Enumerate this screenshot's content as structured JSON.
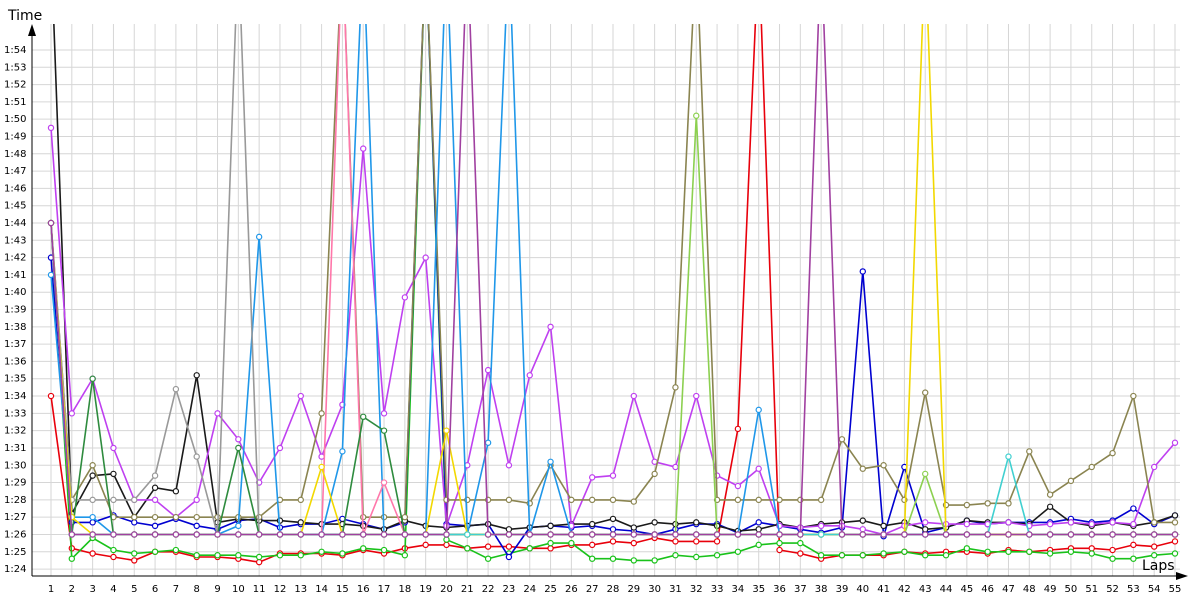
{
  "chart_data": {
    "type": "line",
    "xlabel": "Laps",
    "ylabel": "Time",
    "x_ticks": [
      "1",
      "2",
      "3",
      "4",
      "5",
      "6",
      "7",
      "8",
      "9",
      "10",
      "11",
      "12",
      "13",
      "14",
      "15",
      "16",
      "17",
      "18",
      "19",
      "20",
      "21",
      "22",
      "23",
      "24",
      "25",
      "26",
      "27",
      "28",
      "29",
      "30",
      "31",
      "32",
      "33",
      "34",
      "35",
      "36",
      "37",
      "38",
      "39",
      "40",
      "41",
      "42",
      "43",
      "44",
      "45",
      "46",
      "47",
      "48",
      "49",
      "50",
      "51",
      "52",
      "53",
      "54",
      "55"
    ],
    "y_ticks": [
      "1:24",
      "1:25",
      "1:26",
      "1:27",
      "1:28",
      "1:29",
      "1:30",
      "1:31",
      "1:32",
      "1:33",
      "1:34",
      "1:35",
      "1:36",
      "1:37",
      "1:38",
      "1:39",
      "1:40",
      "1:41",
      "1:42",
      "1:43",
      "1:44",
      "1:45",
      "1:46",
      "1:47",
      "1:48",
      "1:49",
      "1:50",
      "1:51",
      "1:52",
      "1:53",
      "1:54"
    ],
    "y_unit_seconds": {
      "min": 83.6,
      "max": 115.5
    },
    "grid": true,
    "legend": "none",
    "note_values_in_seconds": true,
    "series": [
      {
        "color": "#e8000b",
        "values": [
          94,
          85.2,
          84.9,
          84.7,
          84.5,
          85.0,
          85.0,
          84.7,
          84.7,
          84.6,
          84.4,
          84.9,
          84.9,
          84.9,
          84.8,
          85.1,
          84.9,
          85.2,
          85.4,
          85.4,
          85.2,
          85.3,
          85.3,
          85.2,
          85.2,
          85.4,
          85.4,
          85.6,
          85.5,
          85.8,
          85.6,
          85.6,
          85.6,
          92.1,
          120,
          85.1,
          84.9,
          84.6,
          84.8,
          84.8,
          84.8,
          85.0,
          84.9,
          85.0,
          85.0,
          84.9,
          85.1,
          85.0,
          85.1,
          85.2,
          85.2,
          85.1,
          85.4,
          85.3,
          85.6
        ]
      },
      {
        "color": "#19c21a",
        "values": [
          104,
          84.6,
          85.8,
          85.1,
          84.9,
          85.0,
          85.1,
          84.8,
          84.8,
          84.8,
          84.7,
          84.8,
          84.8,
          85.0,
          84.9,
          85.2,
          85.1,
          84.8,
          120,
          85.7,
          85.2,
          84.6,
          84.9,
          85.2,
          85.5,
          85.5,
          84.6,
          84.6,
          84.5,
          84.5,
          84.8,
          84.7,
          84.8,
          85.0,
          85.4,
          85.5,
          85.5,
          84.8,
          84.8,
          84.8,
          84.9,
          85.0,
          84.8,
          84.8,
          85.2,
          85.0,
          85.0,
          85.0,
          84.9,
          85.0,
          84.9,
          84.6,
          84.6,
          84.8,
          84.9
        ]
      },
      {
        "color": "#0000d0",
        "values": [
          102,
          86.7,
          86.7,
          87.1,
          86.7,
          86.5,
          86.9,
          86.5,
          86.3,
          86.8,
          86.9,
          86.4,
          86.6,
          86.6,
          86.9,
          86.6,
          86.3,
          86.7,
          120,
          86.6,
          86.5,
          86.6,
          84.7,
          86.4,
          86.5,
          86.4,
          86.5,
          86.3,
          86.2,
          86.0,
          86.3,
          86.6,
          86.6,
          86.1,
          86.7,
          86.5,
          86.3,
          86.1,
          86.4,
          101.2,
          85.9,
          89.9,
          86.1,
          86.4,
          86.8,
          86.6,
          86.7,
          86.7,
          86.7,
          86.9,
          86.7,
          86.8,
          87.5,
          86.6,
          87.1
        ]
      },
      {
        "color": "#1a1a1a",
        "values": [
          120,
          87.2,
          89.4,
          89.5,
          87.0,
          88.7,
          88.5,
          95.2,
          86.7,
          86.9,
          86.8,
          86.8,
          86.7,
          86.6,
          86.6,
          86.5,
          86.3,
          86.8,
          86.5,
          86.4,
          86.5,
          86.6,
          86.3,
          86.4,
          86.5,
          86.6,
          86.6,
          86.9,
          86.4,
          86.7,
          86.6,
          86.7,
          86.5,
          86.2,
          86.3,
          86.6,
          86.4,
          86.6,
          86.7,
          86.8,
          86.5,
          86.7,
          86.3,
          86.4,
          86.8,
          86.7,
          86.7,
          86.6,
          87.6,
          86.7,
          86.5,
          86.7,
          86.5,
          86.7,
          87.1
        ]
      },
      {
        "color": "#bf40f0",
        "values": [
          109.5,
          93,
          95,
          91,
          88,
          88,
          87,
          88,
          93,
          91.5,
          89,
          91,
          94,
          90.5,
          93.5,
          108.3,
          93,
          99.7,
          102,
          86.5,
          90,
          95.5,
          90,
          95.2,
          98,
          86.5,
          89.3,
          89.4,
          94,
          90.2,
          89.9,
          94,
          89.4,
          88.8,
          89.8,
          86.5,
          86.4,
          86.5,
          86.5,
          86.3,
          86.0,
          86.5,
          86.7,
          86.6,
          86.6,
          86.6,
          86.7,
          86.5,
          86.6,
          86.7,
          86.6,
          86.7,
          86.6,
          89.9,
          91.3
        ]
      },
      {
        "color": "#8a8450",
        "values": [
          104,
          88,
          90,
          87,
          87,
          87,
          87,
          87,
          87,
          87,
          87,
          88,
          88,
          93,
          120,
          87,
          87,
          87,
          120,
          88,
          88,
          88,
          88,
          87.8,
          90,
          88,
          88,
          88,
          87.9,
          89.5,
          94.5,
          120,
          88,
          88,
          88,
          88,
          88,
          88,
          91.5,
          89.8,
          90,
          88,
          94.2,
          87.7,
          87.7,
          87.8,
          87.8,
          90.8,
          88.3,
          89.1,
          89.9,
          90.7,
          94,
          86.7,
          86.7
        ]
      },
      {
        "color": "#1f97e9",
        "values": [
          101,
          87,
          87,
          86,
          86,
          86,
          86,
          86,
          86,
          86.5,
          103.2,
          86,
          86,
          86,
          90.8,
          120,
          86,
          86,
          86,
          120,
          86,
          91.3,
          120,
          86,
          90.2,
          86,
          86,
          86,
          86,
          86,
          86,
          86,
          86,
          86,
          93.2,
          86,
          86,
          86,
          86,
          86,
          86,
          86,
          86,
          86,
          86,
          86,
          86,
          86,
          86,
          86,
          86,
          86,
          86,
          86,
          86
        ]
      },
      {
        "color": "#999999",
        "values": [
          104,
          88,
          88,
          88,
          88,
          89.4,
          94.4,
          90.5,
          86,
          120,
          86,
          86,
          86,
          86,
          86,
          86,
          86,
          86,
          86,
          86,
          86,
          86,
          86,
          86,
          86,
          86,
          86,
          86,
          86,
          86,
          86,
          86,
          86,
          86,
          86,
          86,
          86,
          86,
          86,
          86,
          86,
          86,
          86,
          86,
          86,
          86,
          86,
          86,
          86,
          86,
          86,
          86,
          86,
          86,
          86
        ]
      },
      {
        "color": "#8cd050",
        "values": [
          104,
          86,
          86,
          86,
          86,
          86,
          86,
          86,
          86,
          86,
          86,
          86,
          86,
          86,
          86,
          86,
          86,
          86,
          86,
          86,
          86,
          86,
          86,
          86,
          86,
          86,
          86,
          86,
          86,
          86,
          86,
          110.2,
          86,
          86,
          86,
          86,
          86,
          86,
          86,
          86,
          86,
          86,
          89.5,
          86,
          86,
          86,
          86,
          86,
          86,
          86,
          86,
          86,
          86,
          86,
          86
        ]
      },
      {
        "color": "#ff77aa",
        "values": [
          104,
          86,
          86,
          86,
          86,
          86,
          86,
          86,
          86,
          86,
          86,
          86,
          86,
          86,
          120,
          86,
          89,
          86,
          86,
          86,
          86,
          86,
          86,
          86,
          86,
          86,
          86,
          86,
          86,
          86,
          86,
          86,
          86,
          86,
          86,
          86,
          86,
          86,
          86,
          86,
          86,
          86,
          86,
          86,
          86,
          86,
          86,
          86,
          86,
          86,
          86,
          86,
          86,
          86,
          86
        ]
      },
      {
        "color": "#2e8b3e",
        "values": [
          104,
          86,
          95,
          86,
          86,
          86,
          86,
          86,
          86,
          91,
          86,
          86,
          86,
          86,
          86,
          92.8,
          92,
          86,
          86,
          86,
          86,
          86,
          86,
          86,
          86,
          86,
          86,
          86,
          86,
          86,
          86,
          86,
          86,
          86,
          86,
          86,
          86,
          86,
          86,
          86,
          86,
          86,
          86,
          86,
          86,
          86,
          86,
          86,
          86,
          86,
          86,
          86,
          86,
          86,
          86
        ]
      },
      {
        "color": "#f2d800",
        "values": [
          104,
          87,
          86,
          86,
          86,
          86,
          86,
          86,
          86,
          86,
          86,
          86,
          86,
          89.9,
          86,
          86,
          86,
          86,
          86,
          92,
          86,
          86,
          86,
          86,
          86,
          86,
          86,
          86,
          86,
          86,
          86,
          86,
          86,
          86,
          86,
          86,
          86,
          86,
          86,
          86,
          86,
          86,
          120,
          86,
          86,
          86,
          86,
          86,
          86,
          86,
          86,
          86,
          86,
          86,
          86
        ]
      },
      {
        "color": "#40d0d0",
        "values": [
          104,
          86,
          86,
          86,
          86,
          86,
          86,
          86,
          86,
          86,
          86,
          86,
          86,
          86,
          86,
          86,
          86,
          86,
          86,
          86,
          86,
          86,
          86,
          86,
          86,
          86,
          86,
          86,
          86,
          86,
          86,
          86,
          86,
          86,
          86,
          86,
          86,
          86,
          86,
          86,
          86,
          86,
          86,
          86,
          86,
          86,
          90.5,
          86,
          86,
          86,
          86,
          86,
          86,
          86,
          86
        ]
      },
      {
        "color": "#a040a0",
        "values": [
          104,
          86,
          86,
          86,
          86,
          86,
          86,
          86,
          86,
          86,
          86,
          86,
          86,
          86,
          86,
          86,
          86,
          86,
          86,
          86,
          120,
          86,
          86,
          86,
          86,
          86,
          86,
          86,
          86,
          86,
          86,
          86,
          86,
          86,
          86,
          86,
          86,
          120,
          86,
          86,
          86,
          86,
          86,
          86,
          86,
          86,
          86,
          86,
          86,
          86,
          86,
          86,
          86,
          86,
          86
        ]
      }
    ]
  }
}
